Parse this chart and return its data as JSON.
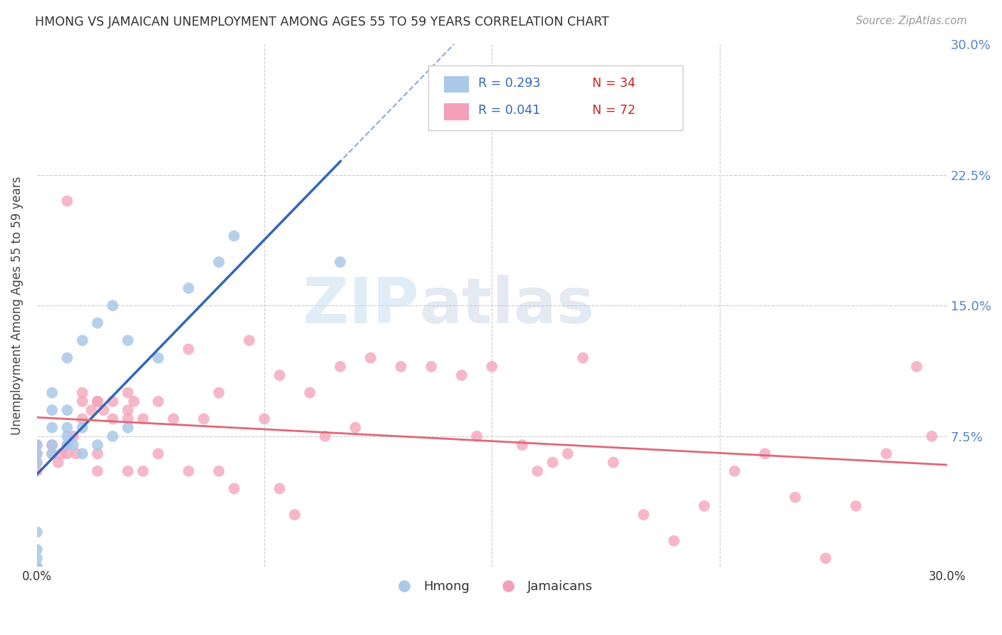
{
  "title": "HMONG VS JAMAICAN UNEMPLOYMENT AMONG AGES 55 TO 59 YEARS CORRELATION CHART",
  "source": "Source: ZipAtlas.com",
  "ylabel": "Unemployment Among Ages 55 to 59 years",
  "xlim": [
    0.0,
    0.3
  ],
  "ylim": [
    0.0,
    0.3
  ],
  "hmong_R": 0.293,
  "hmong_N": 34,
  "jamaican_R": 0.041,
  "jamaican_N": 72,
  "legend_label_hmong": "Hmong",
  "legend_label_jamaican": "Jamaicans",
  "watermark_zip": "ZIP",
  "watermark_atlas": "atlas",
  "grid_color": "#cccccc",
  "bg_color": "#ffffff",
  "title_color": "#333333",
  "right_tick_color": "#5588cc",
  "hmong_trend_color": "#3366bb",
  "jamaican_trend_color": "#e06878",
  "hmong_dot_color": "#aac8e8",
  "jamaican_dot_color": "#f4a0b8",
  "hmong_x": [
    0.0,
    0.0,
    0.0,
    0.0,
    0.0,
    0.0,
    0.0,
    0.0,
    0.0,
    0.005,
    0.005,
    0.005,
    0.005,
    0.005,
    0.01,
    0.01,
    0.01,
    0.01,
    0.01,
    0.012,
    0.015,
    0.015,
    0.015,
    0.02,
    0.02,
    0.025,
    0.025,
    0.03,
    0.03,
    0.04,
    0.05,
    0.06,
    0.065,
    0.1
  ],
  "hmong_y": [
    0.0,
    0.0,
    0.0,
    0.005,
    0.01,
    0.02,
    0.06,
    0.065,
    0.07,
    0.065,
    0.07,
    0.08,
    0.09,
    0.1,
    0.07,
    0.075,
    0.08,
    0.09,
    0.12,
    0.07,
    0.065,
    0.08,
    0.13,
    0.07,
    0.14,
    0.075,
    0.15,
    0.08,
    0.13,
    0.12,
    0.16,
    0.175,
    0.19,
    0.175
  ],
  "jamaican_x": [
    0.0,
    0.0,
    0.0,
    0.0,
    0.005,
    0.005,
    0.007,
    0.008,
    0.01,
    0.01,
    0.012,
    0.013,
    0.015,
    0.015,
    0.015,
    0.018,
    0.02,
    0.02,
    0.02,
    0.022,
    0.025,
    0.025,
    0.03,
    0.03,
    0.03,
    0.032,
    0.035,
    0.035,
    0.04,
    0.04,
    0.045,
    0.05,
    0.05,
    0.055,
    0.06,
    0.06,
    0.065,
    0.07,
    0.075,
    0.08,
    0.08,
    0.085,
    0.09,
    0.095,
    0.1,
    0.105,
    0.11,
    0.12,
    0.13,
    0.14,
    0.145,
    0.15,
    0.16,
    0.165,
    0.17,
    0.175,
    0.18,
    0.19,
    0.2,
    0.21,
    0.22,
    0.23,
    0.24,
    0.25,
    0.26,
    0.27,
    0.28,
    0.29,
    0.295,
    0.01,
    0.02,
    0.03
  ],
  "jamaican_y": [
    0.07,
    0.065,
    0.06,
    0.055,
    0.07,
    0.065,
    0.06,
    0.065,
    0.07,
    0.065,
    0.075,
    0.065,
    0.1,
    0.095,
    0.085,
    0.09,
    0.095,
    0.065,
    0.055,
    0.09,
    0.095,
    0.085,
    0.1,
    0.09,
    0.055,
    0.095,
    0.085,
    0.055,
    0.095,
    0.065,
    0.085,
    0.055,
    0.125,
    0.085,
    0.1,
    0.055,
    0.045,
    0.13,
    0.085,
    0.11,
    0.045,
    0.03,
    0.1,
    0.075,
    0.115,
    0.08,
    0.12,
    0.115,
    0.115,
    0.11,
    0.075,
    0.115,
    0.07,
    0.055,
    0.06,
    0.065,
    0.12,
    0.06,
    0.03,
    0.015,
    0.035,
    0.055,
    0.065,
    0.04,
    0.005,
    0.035,
    0.065,
    0.115,
    0.075,
    0.21,
    0.095,
    0.085
  ]
}
